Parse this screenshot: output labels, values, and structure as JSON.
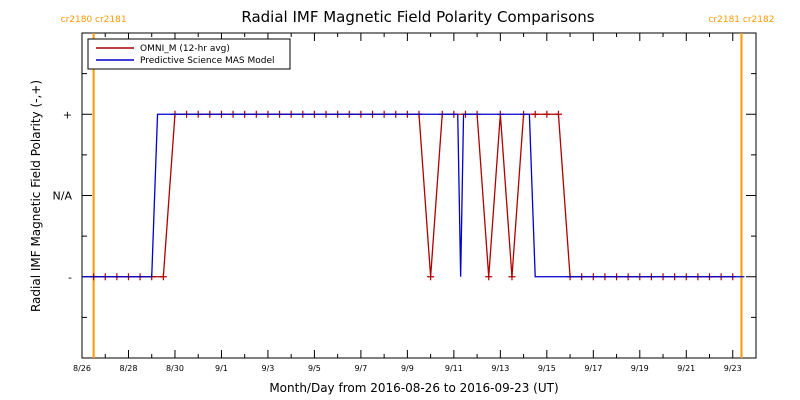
{
  "chart_data": {
    "type": "line",
    "title": "Radial IMF Magnetic Field Polarity Comparisons",
    "xlabel": "Month/Day from 2016-08-26 to 2016-09-23 (UT)",
    "ylabel": "Radial IMF Magnetic Field Polarity (-,+)",
    "x_range": [
      "2016-08-26",
      "2016-09-24"
    ],
    "y_categories": [
      {
        "value": -1,
        "label": "-"
      },
      {
        "value": 0,
        "label": "N/A"
      },
      {
        "value": 1,
        "label": "+"
      }
    ],
    "ylim": [
      -2,
      2
    ],
    "x_ticks": [
      "8/26",
      "8/28",
      "8/30",
      "9/1",
      "9/3",
      "9/5",
      "9/7",
      "9/9",
      "9/11",
      "9/13",
      "9/15",
      "9/17",
      "9/19",
      "9/21",
      "9/23"
    ],
    "legend": {
      "placement": "top-left"
    },
    "carrington_rotations": [
      {
        "date": "2016-08-26 12:00",
        "label": "cr2180 cr2181",
        "color": "#ff9900"
      },
      {
        "date": "2016-09-23 09:00",
        "label": "cr2181 cr2182",
        "color": "#ff9900"
      }
    ],
    "series": [
      {
        "name": "OMNI_M (12-hr avg)",
        "color": "#b00000",
        "markers": "plus",
        "step_hours": 12,
        "start": "2016-08-26 12:00",
        "values": [
          -1,
          -1,
          -1,
          -1,
          -1,
          -1,
          -1,
          1,
          1,
          1,
          1,
          1,
          1,
          1,
          1,
          1,
          1,
          1,
          1,
          1,
          1,
          1,
          1,
          1,
          1,
          1,
          1,
          1,
          1,
          -1,
          1,
          1,
          1,
          1,
          -1,
          1,
          -1,
          1,
          1,
          1,
          1,
          -1,
          -1,
          -1,
          -1,
          -1,
          -1,
          -1,
          -1,
          -1,
          -1,
          -1,
          -1,
          -1,
          -1,
          -1
        ]
      },
      {
        "name": "Predictive Science MAS Model",
        "color": "#0000cc",
        "markers": "none",
        "points": [
          {
            "date": "2016-08-26 00:00",
            "value": -1
          },
          {
            "date": "2016-08-29 00:00",
            "value": -1
          },
          {
            "date": "2016-08-29 06:00",
            "value": 1
          },
          {
            "date": "2016-09-11 04:00",
            "value": 1
          },
          {
            "date": "2016-09-11 07:00",
            "value": -1
          },
          {
            "date": "2016-09-11 10:00",
            "value": 1
          },
          {
            "date": "2016-09-14 06:00",
            "value": 1
          },
          {
            "date": "2016-09-14 12:00",
            "value": -1
          },
          {
            "date": "2016-09-23 12:00",
            "value": -1
          }
        ]
      }
    ]
  }
}
